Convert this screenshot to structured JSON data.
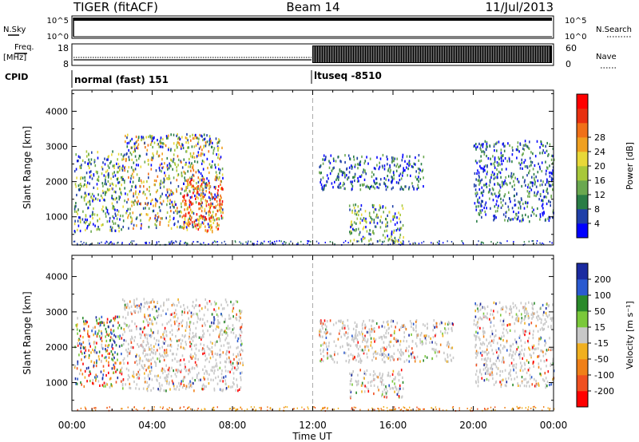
{
  "header": {
    "radar": "TIGER (fitACF)",
    "beam": "Beam 14",
    "date": "11/Jul/2013"
  },
  "meta_labels": {
    "nsky": "N.Sky",
    "nsearch": "N.Search",
    "freq": "Freq.",
    "mhz": "[MHz]",
    "nave": "Nave",
    "cpid": "CPID",
    "nsky_ticks": [
      "10^5",
      "10^0"
    ],
    "nsearch_ticks": [
      "10^5",
      "10^0"
    ],
    "freq_ticks": [
      "18",
      "8"
    ],
    "nave_ticks": [
      "60",
      "0"
    ]
  },
  "cpid_segments": [
    {
      "label": "normal (fast) 151",
      "start": "00:00",
      "end": "12:00"
    },
    {
      "label": "ltuseq -8510",
      "start": "12:00",
      "end": "24:00"
    }
  ],
  "chart_data": [
    {
      "type": "heatmap",
      "title": "",
      "xlabel": "Time UT",
      "ylabel": "Slant Range [km]",
      "x_ticks": [
        "00:00",
        "04:00",
        "08:00",
        "12:00",
        "16:00",
        "20:00",
        "00:00"
      ],
      "y_ticks": [
        1000,
        2000,
        3000,
        4000
      ],
      "xlim": [
        0,
        24
      ],
      "ylim": [
        200,
        4600
      ],
      "colorbar": {
        "label": "Power [dB]",
        "ticks": [
          4,
          8,
          12,
          16,
          20,
          24,
          28
        ],
        "colors": [
          "#0000ff",
          "#1f3fa8",
          "#2a7d46",
          "#6aa84f",
          "#a8c83a",
          "#e8d838",
          "#f0a020",
          "#f07018",
          "#e83010",
          "#ff0000"
        ]
      },
      "scatter_regions": [
        {
          "t0": 0.1,
          "t1": 2.5,
          "r0": 600,
          "r1": 2900,
          "level": "mid"
        },
        {
          "t0": 2.5,
          "t1": 7.5,
          "r0": 700,
          "r1": 3400,
          "level": "high"
        },
        {
          "t0": 5.5,
          "t1": 7.5,
          "r0": 600,
          "r1": 2100,
          "level": "max"
        },
        {
          "t0": 12.3,
          "t1": 17.5,
          "r0": 1800,
          "r1": 2800,
          "level": "low"
        },
        {
          "t0": 13.8,
          "t1": 16.5,
          "r0": 300,
          "r1": 1400,
          "level": "mid"
        },
        {
          "t0": 20.0,
          "t1": 24.0,
          "r0": 900,
          "r1": 3200,
          "level": "low"
        }
      ]
    },
    {
      "type": "heatmap",
      "title": "",
      "xlabel": "Time UT",
      "ylabel": "Slant Range [km]",
      "x_ticks": [
        "00:00",
        "04:00",
        "08:00",
        "12:00",
        "16:00",
        "20:00",
        "00:00"
      ],
      "y_ticks": [
        1000,
        2000,
        3000,
        4000
      ],
      "xlim": [
        0,
        24
      ],
      "ylim": [
        200,
        4600
      ],
      "colorbar": {
        "label": "Velocity [m s⁻¹]",
        "ticks": [
          200,
          100,
          50,
          15,
          -15,
          -50,
          -100,
          -200
        ],
        "colors": [
          "#1a2aa0",
          "#2a5ad0",
          "#2a8a2a",
          "#7ac83a",
          "#c8c8c8",
          "#f0b020",
          "#f08018",
          "#f05020",
          "#ff0000"
        ]
      },
      "scatter_regions": [
        {
          "t0": 0.1,
          "t1": 2.5,
          "r0": 900,
          "r1": 2900,
          "level": "mixed"
        },
        {
          "t0": 2.5,
          "t1": 8.5,
          "r0": 800,
          "r1": 3400,
          "level": "grey"
        },
        {
          "t0": 12.3,
          "t1": 19.0,
          "r0": 1600,
          "r1": 2800,
          "level": "grey"
        },
        {
          "t0": 13.8,
          "t1": 16.5,
          "r0": 600,
          "r1": 1400,
          "level": "grey"
        },
        {
          "t0": 20.0,
          "t1": 24.0,
          "r0": 900,
          "r1": 3300,
          "level": "grey"
        }
      ]
    }
  ]
}
